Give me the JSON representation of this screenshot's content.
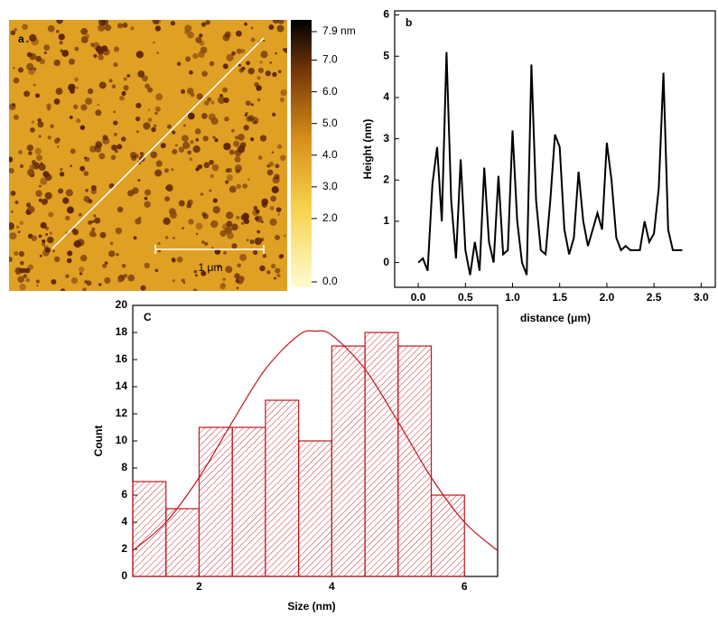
{
  "chart_data": [
    {
      "type": "image",
      "panel_label": "a",
      "scale_bar_label": "1 μm",
      "colorbar": {
        "clim": [
          0,
          7.9
        ],
        "ticks": [
          {
            "value": 7.9,
            "label": "7.9 nm"
          },
          {
            "value": 7,
            "label": "7.0"
          },
          {
            "value": 6,
            "label": "6.0"
          },
          {
            "value": 5,
            "label": "5.0"
          },
          {
            "value": 4,
            "label": "4.0"
          },
          {
            "value": 3,
            "label": "3.0"
          },
          {
            "value": 2,
            "label": "2.0"
          },
          {
            "value": 0,
            "label": "0.0"
          }
        ]
      }
    },
    {
      "type": "line",
      "panel_label": "b",
      "x_label": "distance (μm)",
      "y_label": "Height (nm)",
      "color": "#000000",
      "x": [
        0,
        0.05,
        0.1,
        0.15,
        0.2,
        0.25,
        0.3,
        0.35,
        0.4,
        0.45,
        0.5,
        0.55,
        0.6,
        0.65,
        0.7,
        0.75,
        0.8,
        0.85,
        0.9,
        0.95,
        1.0,
        1.05,
        1.1,
        1.15,
        1.2,
        1.25,
        1.3,
        1.35,
        1.4,
        1.45,
        1.5,
        1.55,
        1.6,
        1.65,
        1.7,
        1.75,
        1.8,
        1.85,
        1.9,
        1.95,
        2.0,
        2.05,
        2.1,
        2.15,
        2.2,
        2.25,
        2.3,
        2.35,
        2.4,
        2.45,
        2.5,
        2.55,
        2.6,
        2.65,
        2.7,
        2.75,
        2.8
      ],
      "values": [
        0.0,
        0.1,
        -0.2,
        1.9,
        2.8,
        1.0,
        5.1,
        1.5,
        0.1,
        2.5,
        0.3,
        -0.3,
        0.5,
        -0.2,
        2.3,
        0.5,
        0.0,
        2.1,
        0.2,
        0.3,
        3.2,
        1.0,
        0.0,
        -0.3,
        4.8,
        1.5,
        0.3,
        0.2,
        1.5,
        3.1,
        2.8,
        0.8,
        0.2,
        0.6,
        2.2,
        1.0,
        0.4,
        0.8,
        1.2,
        0.8,
        2.9,
        2.0,
        0.6,
        0.3,
        0.4,
        0.3,
        0.3,
        0.3,
        1.0,
        0.5,
        0.7,
        1.8,
        4.6,
        0.8,
        0.3,
        0.3,
        0.3
      ],
      "xlim": [
        -0.25,
        3.15
      ],
      "ylim": [
        -0.6,
        6.1
      ],
      "xticks": [
        {
          "value": 0,
          "label": "0.0"
        },
        {
          "value": 0.5,
          "label": "0.5"
        },
        {
          "value": 1,
          "label": "1.0"
        },
        {
          "value": 1.5,
          "label": "1.5"
        },
        {
          "value": 2,
          "label": "2.0"
        },
        {
          "value": 2.5,
          "label": "2.5"
        },
        {
          "value": 3,
          "label": "3.0"
        }
      ],
      "yticks": [
        0,
        1,
        2,
        3,
        4,
        5,
        6
      ]
    },
    {
      "type": "histogram",
      "panel_label": "C",
      "x_label": "Size (nm)",
      "y_label": "Count",
      "color": "#c0171e",
      "bins": [
        1,
        1.5,
        2,
        2.5,
        3,
        3.5,
        4,
        4.5,
        5,
        5.5,
        6
      ],
      "counts": [
        7,
        5,
        11,
        11,
        13,
        10,
        17,
        18,
        17,
        6
      ],
      "fit": {
        "x": [
          1,
          1.5,
          2,
          2.5,
          3,
          3.5,
          3.75,
          4,
          4.5,
          5,
          5.5,
          6,
          6.5
        ],
        "values": [
          1.9,
          4.0,
          7.3,
          11.4,
          15.3,
          17.8,
          18.1,
          17.8,
          15.3,
          11.4,
          7.3,
          4.0,
          1.9
        ]
      },
      "xlim": [
        1,
        6.5
      ],
      "ylim": [
        0,
        20
      ],
      "xticks": [
        2,
        4,
        6
      ],
      "yticks": [
        0,
        2,
        4,
        6,
        8,
        10,
        12,
        14,
        16,
        18,
        20
      ]
    }
  ]
}
